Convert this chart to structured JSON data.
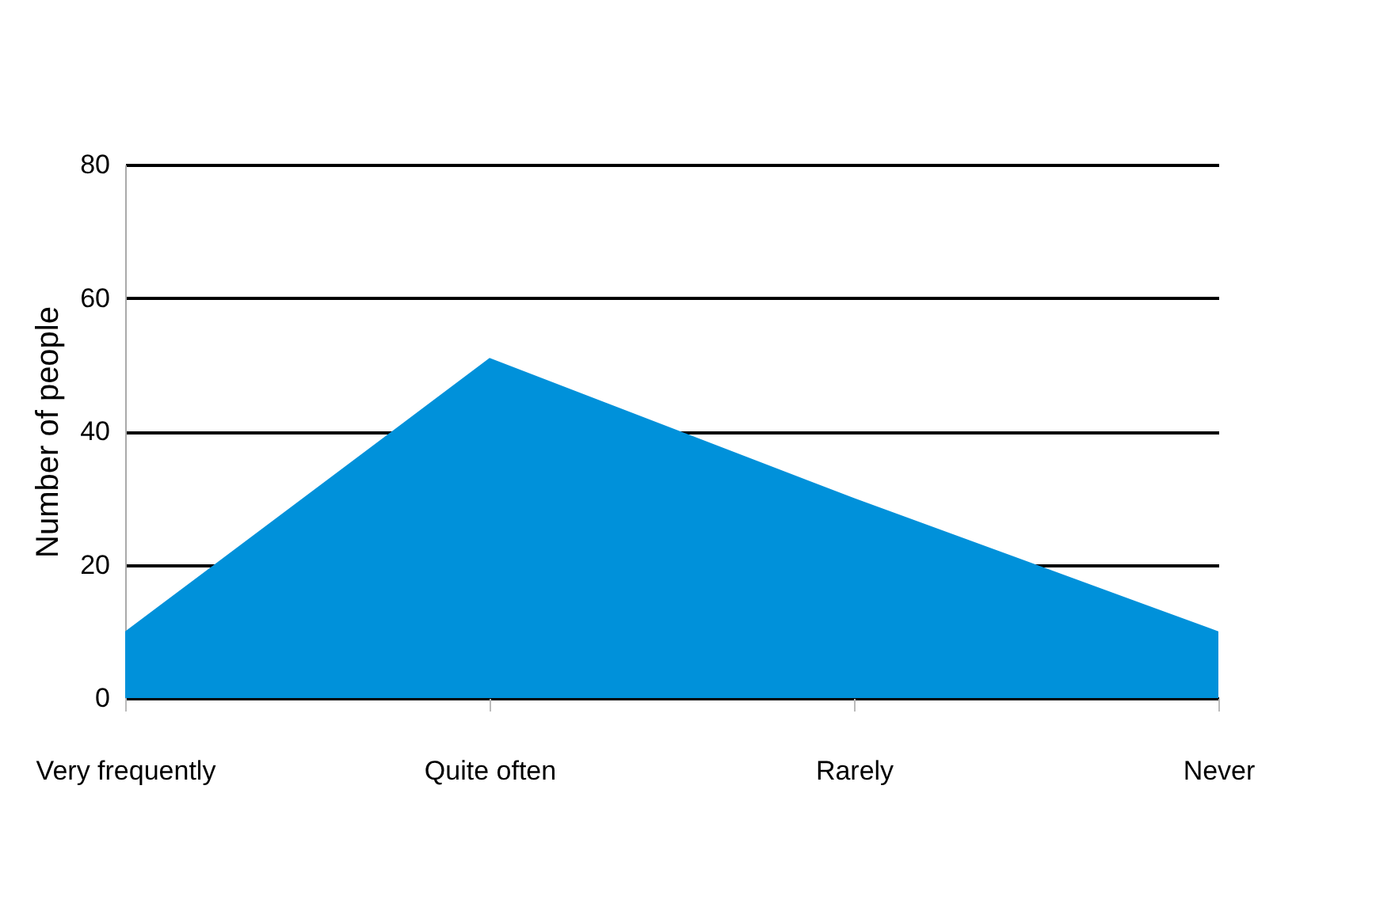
{
  "chart_data": {
    "type": "area",
    "ylabel": "Number of people",
    "categories": [
      "Very frequently",
      "Quite often",
      "Rarely",
      "Never"
    ],
    "series": [
      {
        "color": "#0091da",
        "values": [
          10,
          51,
          30,
          10
        ]
      }
    ],
    "ylim": [
      0,
      80
    ],
    "yticks": [
      0,
      20,
      40,
      60,
      80
    ],
    "grid": "y"
  }
}
